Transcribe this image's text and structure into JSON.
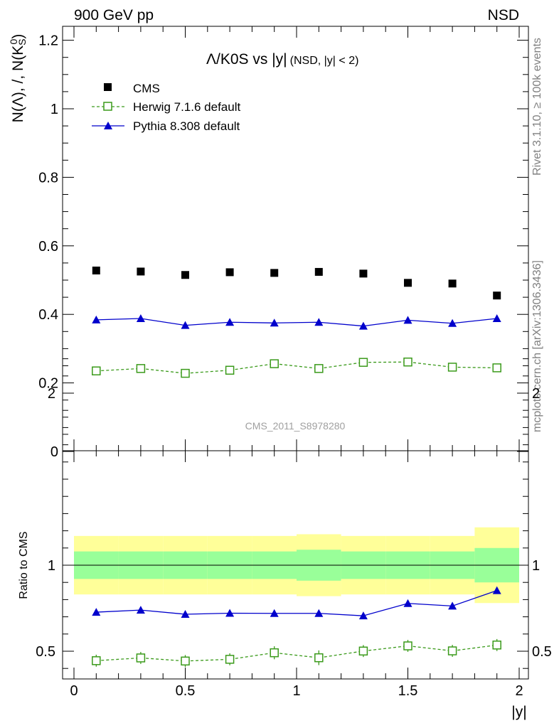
{
  "header": {
    "left": "900 GeV pp",
    "right": "NSD"
  },
  "side_labels": {
    "rivet": "Rivet 3.1.10, ≥ 100k events",
    "mcplots": "mcplots.cern.ch [arXiv:1306.3436]"
  },
  "chart_data": [
    {
      "type": "scatter",
      "title": "Λ/K0S vs |y|",
      "subtitle": "(NSD, |y| < 2)",
      "watermark": "CMS_2011_S8978280",
      "ylabel": "N(Λ), /, N(K",
      "ylabel_sub": "S",
      "ylabel_sup": "0",
      "ylabel_end": ")",
      "xlim": [
        0,
        2
      ],
      "ylim": [
        0,
        1.25
      ],
      "yticks": [
        "0",
        "0.2",
        "0.4",
        "0.6",
        "0.8",
        "1",
        "1.2"
      ],
      "x": [
        0.1,
        0.3,
        0.5,
        0.7,
        0.9,
        1.1,
        1.3,
        1.5,
        1.7,
        1.9
      ],
      "series": [
        {
          "name": "CMS",
          "style": "marker",
          "color": "#000000",
          "values": [
            0.528,
            0.525,
            0.515,
            0.523,
            0.521,
            0.524,
            0.519,
            0.492,
            0.49,
            0.455
          ]
        },
        {
          "name": "Herwig 7.1.6 default",
          "style": "dashed-open-square",
          "color": "#3a9a1a",
          "values": [
            0.235,
            0.242,
            0.228,
            0.237,
            0.256,
            0.242,
            0.26,
            0.261,
            0.246,
            0.244
          ]
        },
        {
          "name": "Pythia 8.308 default",
          "style": "line-triangle",
          "color": "#0000cc",
          "values": [
            0.384,
            0.388,
            0.368,
            0.377,
            0.375,
            0.377,
            0.366,
            0.383,
            0.374,
            0.388
          ]
        }
      ]
    },
    {
      "type": "line",
      "ylabel": "Ratio to CMS",
      "xlabel": "|y|",
      "xlim": [
        0,
        2
      ],
      "ylim": [
        0.35,
        2.3
      ],
      "yticks": [
        "0.5",
        "1",
        "2"
      ],
      "xticks": [
        "0",
        "0.5",
        "1",
        "1.5",
        "2"
      ],
      "x": [
        0.1,
        0.3,
        0.5,
        0.7,
        0.9,
        1.1,
        1.3,
        1.5,
        1.7,
        1.9
      ],
      "bands": {
        "edges": [
          0.0,
          0.2,
          0.4,
          0.6,
          0.8,
          1.0,
          1.2,
          1.4,
          1.6,
          1.8,
          2.0
        ],
        "yellow_color": "#ffff99",
        "green_color": "#99ff99",
        "yellow_low": [
          0.83,
          0.83,
          0.83,
          0.83,
          0.83,
          0.82,
          0.83,
          0.83,
          0.83,
          0.78
        ],
        "yellow_high": [
          1.17,
          1.17,
          1.17,
          1.17,
          1.17,
          1.18,
          1.17,
          1.17,
          1.17,
          1.22
        ],
        "green_low": [
          0.92,
          0.92,
          0.92,
          0.92,
          0.92,
          0.91,
          0.92,
          0.92,
          0.92,
          0.9
        ],
        "green_high": [
          1.08,
          1.08,
          1.08,
          1.08,
          1.08,
          1.09,
          1.08,
          1.08,
          1.08,
          1.1
        ]
      },
      "series": [
        {
          "name": "Herwig 7.1.6 default",
          "style": "dashed-open-square",
          "color": "#3a9a1a",
          "values": [
            0.445,
            0.461,
            0.443,
            0.453,
            0.491,
            0.462,
            0.501,
            0.531,
            0.502,
            0.536
          ],
          "errors": [
            0.012,
            0.012,
            0.012,
            0.012,
            0.015,
            0.02,
            0.012,
            0.012,
            0.012,
            0.012
          ]
        },
        {
          "name": "Pythia 8.308 default",
          "style": "line-triangle",
          "color": "#0000cc",
          "values": [
            0.727,
            0.739,
            0.715,
            0.721,
            0.72,
            0.72,
            0.706,
            0.778,
            0.763,
            0.853
          ]
        }
      ]
    }
  ]
}
